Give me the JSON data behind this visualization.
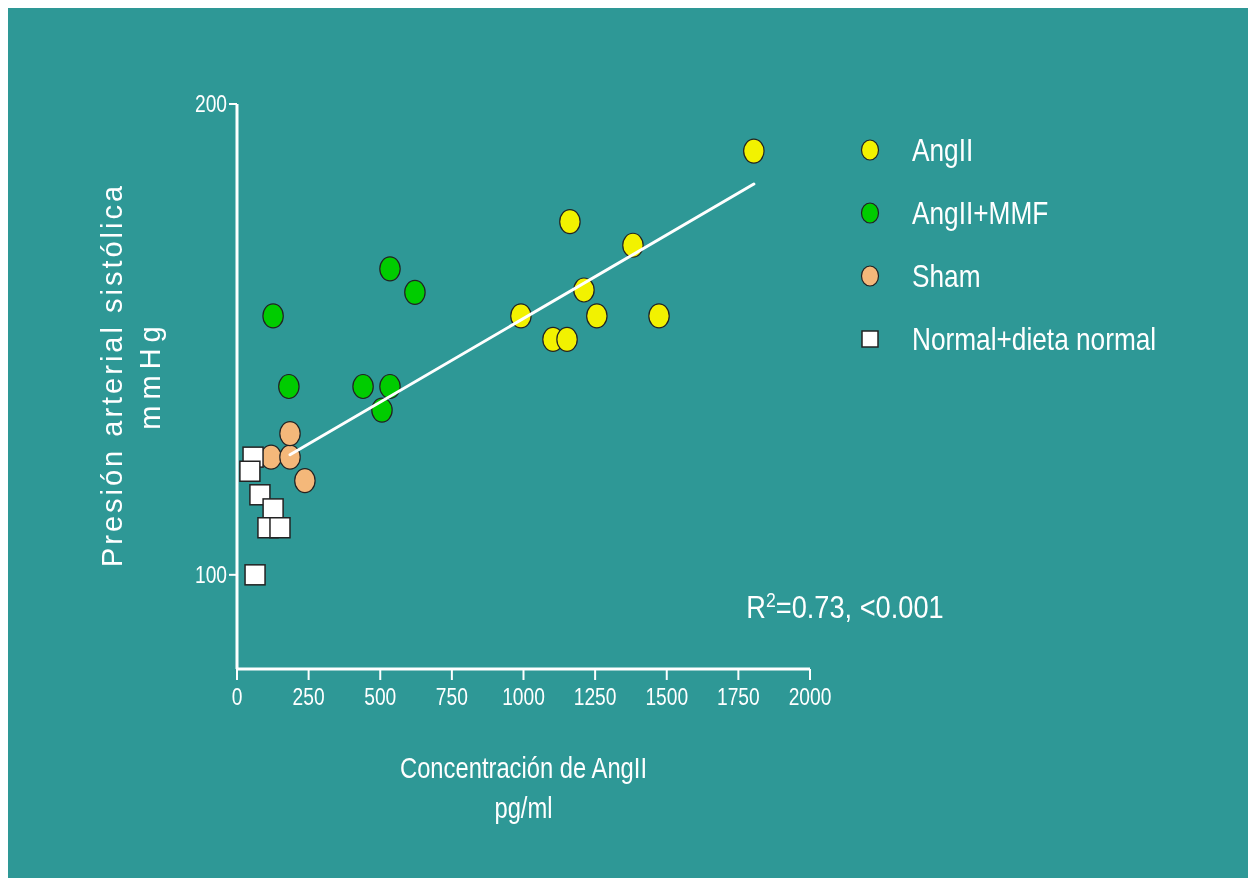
{
  "chart_data": {
    "type": "scatter",
    "xlabel": "Concentración de AngII\npg/ml",
    "ylabel": "Presión arterial sistólica\nmmHg",
    "xlim": [
      0,
      2000
    ],
    "xticks": [
      0,
      250,
      500,
      750,
      1000,
      1250,
      1500,
      1750,
      2000
    ],
    "ylim": [
      80,
      200
    ],
    "yticks": [
      100,
      200
    ],
    "grid": false,
    "legend": "top right",
    "annotations": [
      "R$^{2}$=0.73, <0.001"
    ],
    "series": [
      {
        "name": "AngII",
        "color": "#f2f200",
        "marker": "circle",
        "x": [
          1804,
          1162,
          1382,
          1211,
          991,
          1256,
          1473,
          1103,
          1152
        ],
        "values": [
          190,
          175,
          170,
          160.5,
          155,
          155,
          155,
          150,
          150
        ]
      },
      {
        "name": "AngII+MMF",
        "color": "#00cc00",
        "marker": "circle",
        "x": [
          126,
          534,
          621,
          181,
          440,
          534,
          506
        ],
        "values": [
          155,
          165,
          160,
          140,
          140,
          140,
          135
        ]
      },
      {
        "name": "Sham",
        "color": "#f4b87a",
        "marker": "circle",
        "x": [
          119,
          185,
          185,
          237
        ],
        "values": [
          125,
          125,
          130,
          120
        ]
      },
      {
        "name": "Normal+dieta normal",
        "color": "#ffffff",
        "marker": "square",
        "x": [
          56,
          45,
          80,
          126,
          108,
          150,
          63
        ],
        "values": [
          125,
          122,
          117,
          114,
          110,
          110,
          100
        ]
      },
      {
        "type": "line",
        "color": "#ffffff",
        "x": [
          185,
          1804
        ],
        "values": [
          125.5,
          183
        ]
      }
    ]
  }
}
